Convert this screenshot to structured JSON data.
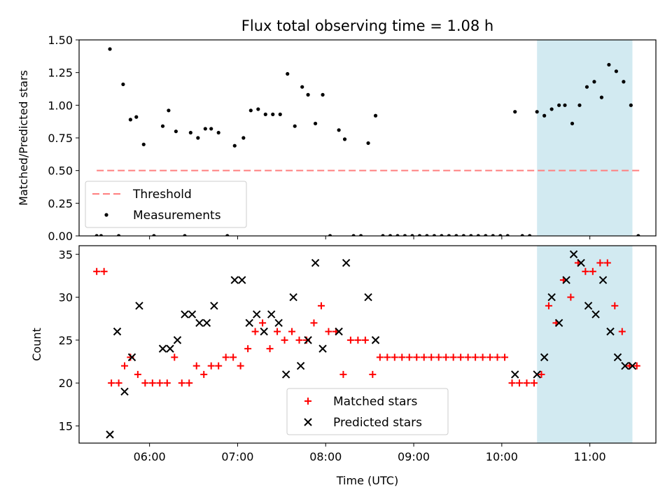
{
  "title": "Flux total observing time = 1.08 h",
  "xlabel": "Time (UTC)",
  "chart_data": [
    {
      "type": "scatter",
      "panel": "top",
      "ylabel": "Matched/Predicted stars",
      "ylim": [
        0,
        1.5
      ],
      "yticks": [
        "0.00",
        "0.25",
        "0.50",
        "0.75",
        "1.00",
        "1.25",
        "1.50"
      ],
      "xlim": [
        "05:12",
        "11:45"
      ],
      "xticks": [
        "06:00",
        "07:00",
        "08:00",
        "09:00",
        "10:00",
        "11:00"
      ],
      "shaded_interval": [
        "10:24",
        "11:29"
      ],
      "shade_color": "#add8e6",
      "legend": {
        "position": "lower-left",
        "entries": [
          "Threshold",
          "Measurements"
        ]
      },
      "threshold": {
        "name": "Threshold",
        "value": 0.5,
        "x": [
          "05:24",
          "11:34"
        ],
        "color": "#ff7f7f"
      },
      "measurements": {
        "name": "Measurements",
        "color": "#000000",
        "points": [
          [
            "05:24",
            0.0
          ],
          [
            "05:27",
            0.0
          ],
          [
            "05:33",
            1.43
          ],
          [
            "05:39",
            0.0
          ],
          [
            "05:42",
            1.16
          ],
          [
            "05:47",
            0.89
          ],
          [
            "05:51",
            0.91
          ],
          [
            "05:56",
            0.7
          ],
          [
            "06:03",
            0.0
          ],
          [
            "06:09",
            0.84
          ],
          [
            "06:13",
            0.96
          ],
          [
            "06:18",
            0.8
          ],
          [
            "06:24",
            0.0
          ],
          [
            "06:28",
            0.79
          ],
          [
            "06:33",
            0.75
          ],
          [
            "06:38",
            0.82
          ],
          [
            "06:42",
            0.82
          ],
          [
            "06:47",
            0.79
          ],
          [
            "06:53",
            0.0
          ],
          [
            "06:58",
            0.69
          ],
          [
            "07:04",
            0.75
          ],
          [
            "07:09",
            0.96
          ],
          [
            "07:14",
            0.97
          ],
          [
            "07:19",
            0.93
          ],
          [
            "07:24",
            0.93
          ],
          [
            "07:29",
            0.93
          ],
          [
            "07:34",
            1.24
          ],
          [
            "07:39",
            0.84
          ],
          [
            "07:44",
            1.14
          ],
          [
            "07:48",
            1.08
          ],
          [
            "07:53",
            0.86
          ],
          [
            "07:58",
            1.08
          ],
          [
            "08:03",
            0.0
          ],
          [
            "08:09",
            0.81
          ],
          [
            "08:13",
            0.74
          ],
          [
            "08:19",
            0.0
          ],
          [
            "08:24",
            0.0
          ],
          [
            "08:29",
            0.71
          ],
          [
            "08:34",
            0.92
          ],
          [
            "08:39",
            0.0
          ],
          [
            "08:44",
            0.0
          ],
          [
            "08:49",
            0.0
          ],
          [
            "08:54",
            0.0
          ],
          [
            "08:59",
            0.0
          ],
          [
            "09:04",
            0.0
          ],
          [
            "09:09",
            0.0
          ],
          [
            "09:14",
            0.0
          ],
          [
            "09:19",
            0.0
          ],
          [
            "09:24",
            0.0
          ],
          [
            "09:29",
            0.0
          ],
          [
            "09:34",
            0.0
          ],
          [
            "09:39",
            0.0
          ],
          [
            "09:44",
            0.0
          ],
          [
            "09:49",
            0.0
          ],
          [
            "09:54",
            0.0
          ],
          [
            "09:59",
            0.0
          ],
          [
            "10:04",
            0.0
          ],
          [
            "10:09",
            0.95
          ],
          [
            "10:14",
            0.0
          ],
          [
            "10:19",
            0.0
          ],
          [
            "10:24",
            0.95
          ],
          [
            "10:29",
            0.92
          ],
          [
            "10:34",
            0.97
          ],
          [
            "10:39",
            1.0
          ],
          [
            "10:43",
            1.0
          ],
          [
            "10:48",
            0.86
          ],
          [
            "10:53",
            1.0
          ],
          [
            "10:58",
            1.14
          ],
          [
            "11:03",
            1.18
          ],
          [
            "11:08",
            1.06
          ],
          [
            "11:13",
            1.31
          ],
          [
            "11:18",
            1.26
          ],
          [
            "11:23",
            1.18
          ],
          [
            "11:28",
            1.0
          ],
          [
            "11:33",
            0.0
          ]
        ]
      }
    },
    {
      "type": "scatter",
      "panel": "bottom",
      "ylabel": "Count",
      "ylim": [
        13,
        36
      ],
      "yticks": [
        "15",
        "20",
        "25",
        "30",
        "35"
      ],
      "xlim": [
        "05:12",
        "11:45"
      ],
      "xticks": [
        "06:00",
        "07:00",
        "08:00",
        "09:00",
        "10:00",
        "11:00"
      ],
      "shaded_interval": [
        "10:24",
        "11:29"
      ],
      "shade_color": "#add8e6",
      "legend": {
        "position": "lower-center",
        "entries": [
          "Matched stars",
          "Predicted stars"
        ]
      },
      "series": [
        {
          "name": "Matched stars",
          "marker": "+",
          "color": "#ff0000",
          "points": [
            [
              "05:24",
              33
            ],
            [
              "05:29",
              33
            ],
            [
              "05:34",
              20
            ],
            [
              "05:39",
              20
            ],
            [
              "05:43",
              22
            ],
            [
              "05:47",
              23
            ],
            [
              "05:52",
              21
            ],
            [
              "05:57",
              20
            ],
            [
              "06:02",
              20
            ],
            [
              "06:07",
              20
            ],
            [
              "06:12",
              20
            ],
            [
              "06:17",
              23
            ],
            [
              "06:22",
              20
            ],
            [
              "06:27",
              20
            ],
            [
              "06:32",
              22
            ],
            [
              "06:37",
              21
            ],
            [
              "06:42",
              22
            ],
            [
              "06:47",
              22
            ],
            [
              "06:52",
              23
            ],
            [
              "06:57",
              23
            ],
            [
              "07:02",
              22
            ],
            [
              "07:07",
              24
            ],
            [
              "07:12",
              26
            ],
            [
              "07:17",
              27
            ],
            [
              "07:22",
              24
            ],
            [
              "07:27",
              26
            ],
            [
              "07:32",
              25
            ],
            [
              "07:37",
              26
            ],
            [
              "07:42",
              25
            ],
            [
              "07:47",
              25
            ],
            [
              "07:52",
              27
            ],
            [
              "07:57",
              29
            ],
            [
              "08:02",
              26
            ],
            [
              "08:07",
              26
            ],
            [
              "08:12",
              21
            ],
            [
              "08:17",
              25
            ],
            [
              "08:22",
              25
            ],
            [
              "08:27",
              25
            ],
            [
              "08:32",
              21
            ],
            [
              "08:37",
              23
            ],
            [
              "08:42",
              23
            ],
            [
              "08:47",
              23
            ],
            [
              "08:52",
              23
            ],
            [
              "08:57",
              23
            ],
            [
              "09:02",
              23
            ],
            [
              "09:07",
              23
            ],
            [
              "09:12",
              23
            ],
            [
              "09:17",
              23
            ],
            [
              "09:22",
              23
            ],
            [
              "09:27",
              23
            ],
            [
              "09:32",
              23
            ],
            [
              "09:37",
              23
            ],
            [
              "09:42",
              23
            ],
            [
              "09:47",
              23
            ],
            [
              "09:52",
              23
            ],
            [
              "09:57",
              23
            ],
            [
              "10:02",
              23
            ],
            [
              "10:07",
              20
            ],
            [
              "10:12",
              20
            ],
            [
              "10:17",
              20
            ],
            [
              "10:22",
              20
            ],
            [
              "10:27",
              21
            ],
            [
              "10:32",
              29
            ],
            [
              "10:37",
              27
            ],
            [
              "10:42",
              32
            ],
            [
              "10:47",
              30
            ],
            [
              "10:52",
              34
            ],
            [
              "10:57",
              33
            ],
            [
              "11:02",
              33
            ],
            [
              "11:07",
              34
            ],
            [
              "11:12",
              34
            ],
            [
              "11:17",
              29
            ],
            [
              "11:22",
              26
            ],
            [
              "11:27",
              22
            ],
            [
              "11:32",
              22
            ]
          ]
        },
        {
          "name": "Predicted stars",
          "marker": "x",
          "color": "#000000",
          "points": [
            [
              "05:33",
              14
            ],
            [
              "05:38",
              26
            ],
            [
              "05:43",
              19
            ],
            [
              "05:48",
              23
            ],
            [
              "05:53",
              29
            ],
            [
              "06:09",
              24
            ],
            [
              "06:14",
              24
            ],
            [
              "06:19",
              25
            ],
            [
              "06:24",
              28
            ],
            [
              "06:29",
              28
            ],
            [
              "06:34",
              27
            ],
            [
              "06:39",
              27
            ],
            [
              "06:44",
              29
            ],
            [
              "06:58",
              32
            ],
            [
              "07:03",
              32
            ],
            [
              "07:08",
              27
            ],
            [
              "07:13",
              28
            ],
            [
              "07:18",
              26
            ],
            [
              "07:23",
              28
            ],
            [
              "07:28",
              27
            ],
            [
              "07:33",
              21
            ],
            [
              "07:38",
              30
            ],
            [
              "07:43",
              22
            ],
            [
              "07:48",
              25
            ],
            [
              "07:53",
              34
            ],
            [
              "07:58",
              24
            ],
            [
              "08:09",
              26
            ],
            [
              "08:14",
              34
            ],
            [
              "08:29",
              30
            ],
            [
              "08:34",
              25
            ],
            [
              "10:09",
              21
            ],
            [
              "10:24",
              21
            ],
            [
              "10:29",
              23
            ],
            [
              "10:34",
              30
            ],
            [
              "10:39",
              27
            ],
            [
              "10:44",
              32
            ],
            [
              "10:49",
              35
            ],
            [
              "10:54",
              34
            ],
            [
              "10:59",
              29
            ],
            [
              "11:04",
              28
            ],
            [
              "11:09",
              32
            ],
            [
              "11:14",
              26
            ],
            [
              "11:19",
              23
            ],
            [
              "11:24",
              22
            ],
            [
              "11:29",
              22
            ]
          ]
        }
      ]
    }
  ]
}
